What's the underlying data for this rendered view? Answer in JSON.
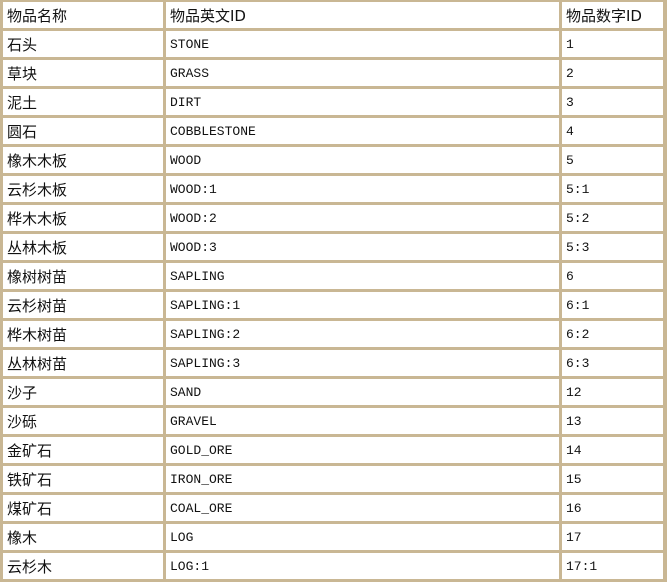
{
  "table": {
    "headers": [
      "物品名称",
      "物品英文ID",
      "物品数字ID"
    ],
    "rows": [
      [
        "石头",
        "STONE",
        "1"
      ],
      [
        "草块",
        "GRASS",
        "2"
      ],
      [
        "泥土",
        "DIRT",
        "3"
      ],
      [
        "圆石",
        "COBBLESTONE",
        "4"
      ],
      [
        "橡木木板",
        "WOOD",
        "5"
      ],
      [
        "云杉木板",
        "WOOD:1",
        "5:1"
      ],
      [
        "桦木木板",
        "WOOD:2",
        "5:2"
      ],
      [
        "丛林木板",
        "WOOD:3",
        "5:3"
      ],
      [
        "橡树树苗",
        "SAPLING",
        "6"
      ],
      [
        "云杉树苗",
        "SAPLING:1",
        "6:1"
      ],
      [
        "桦木树苗",
        "SAPLING:2",
        "6:2"
      ],
      [
        "丛林树苗",
        "SAPLING:3",
        "6:3"
      ],
      [
        "沙子",
        "SAND",
        "12"
      ],
      [
        "沙砾",
        "GRAVEL",
        "13"
      ],
      [
        "金矿石",
        "GOLD_ORE",
        "14"
      ],
      [
        "铁矿石",
        "IRON_ORE",
        "15"
      ],
      [
        "煤矿石",
        "COAL_ORE",
        "16"
      ],
      [
        "橡木",
        "LOG",
        "17"
      ],
      [
        "云杉木",
        "LOG:1",
        "17:1"
      ]
    ]
  },
  "colors": {
    "border": "#c9b794",
    "cell": "#ffffff"
  }
}
